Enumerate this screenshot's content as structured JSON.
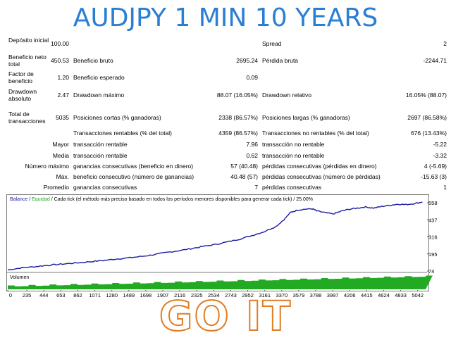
{
  "title": "AUDJPY 1 MIN 10 YEARS",
  "footer_text": "GO IT",
  "colors": {
    "title": "#2a7fd4",
    "balance": "#1a1aa0",
    "volume": "#22aa22",
    "footer": "#e07d24"
  },
  "report": {
    "deposito_label": "Depósito inicial",
    "deposito_value": "100.00",
    "spread_label": "Spread",
    "spread_value": "2",
    "beneficio_neto_label": "Beneficio neto total",
    "beneficio_neto_value": "450.53",
    "beneficio_bruto_label": "Beneficio bruto",
    "beneficio_bruto_value": "2695.24",
    "perdida_bruta_label": "Pérdida bruta",
    "perdida_bruta_value": "-2244.71",
    "factor_label": "Factor de beneficio",
    "factor_value": "1.20",
    "esperado_label": "Beneficio esperado",
    "esperado_value": "0.09",
    "drawdown_abs_label": "Drawdown absoluto",
    "drawdown_abs_value": "2.47",
    "drawdown_max_label": "Drawdown máximo",
    "drawdown_max_value": "88.07 (16.05%)",
    "drawdown_rel_label": "Drawdown relativo",
    "drawdown_rel_value": "16.05% (88.07)",
    "total_tx_label": "Total de transacciones",
    "total_tx_value": "5035",
    "cortas_label": "Posiciones cortas (% ganadoras)",
    "cortas_value": "2338 (86.57%)",
    "largas_label": "Posiciones largas (% ganadoras)",
    "largas_value": "2697 (86.58%)",
    "rentables_label": "Transacciones rentables (% del total)",
    "rentables_value": "4359 (86.57%)",
    "no_rentables_label": "Transacciones no rentables (% del total)",
    "no_rentables_value": "676 (13.43%)",
    "mayor_prefix": "Mayor",
    "mayor_rentable_label": "transacción rentable",
    "mayor_rentable_value": "7.96",
    "mayor_no_rentable_label": "transacción no rentable",
    "mayor_no_rentable_value": "-5.22",
    "media_prefix": "Media",
    "media_rentable_label": "transacción rentable",
    "media_rentable_value": "0.62",
    "media_no_rentable_label": "transacción no rentable",
    "media_no_rentable_value": "-3.32",
    "num_max_prefix": "Número máximo",
    "gan_consec_label": "ganancias consecutivas (beneficio en dinero)",
    "gan_consec_value": "57 (40.48)",
    "per_consec_label": "pérdidas consecutivas (pérdidas en dinero)",
    "per_consec_value": "4 (-5.69)",
    "max_prefix": "Máx.",
    "ben_consec_label": "beneficio consecutivo (número de ganancias)",
    "ben_consec_value": "40.48 (57)",
    "perd_consec_num_label": "pérdidas consecutivas (número de pérdidas)",
    "perd_consec_num_value": "-15.63 (3)",
    "promedio_prefix": "Promedio",
    "prom_gan_label": "ganancias consecutivas",
    "prom_gan_value": "7",
    "prom_per_label": "pérdidas consecutivas",
    "prom_per_value": "1"
  },
  "chart_data": {
    "type": "line",
    "legend_balance": "Balance",
    "legend_sep1": " / ",
    "legend_equity": "Equidad",
    "legend_rest": " / Cada tick (el método más preciso basado en todos los períodos menores disponibles para generar cada tick) / 25.00%",
    "volume_label": "Volumen",
    "y_ticks": [
      "558",
      "437",
      "316",
      "195",
      "74"
    ],
    "x_ticks": [
      "0",
      "235",
      "444",
      "653",
      "862",
      "1071",
      "1280",
      "1489",
      "1698",
      "1907",
      "2116",
      "2325",
      "2534",
      "2743",
      "2952",
      "3161",
      "3370",
      "3579",
      "3788",
      "3997",
      "4206",
      "4415",
      "4624",
      "4833",
      "5042"
    ],
    "ylim": [
      74,
      558
    ],
    "xlim": [
      0,
      5140
    ],
    "balance": [
      [
        0,
        82
      ],
      [
        150,
        95
      ],
      [
        300,
        103
      ],
      [
        450,
        112
      ],
      [
        600,
        120
      ],
      [
        750,
        127
      ],
      [
        900,
        134
      ],
      [
        1050,
        142
      ],
      [
        1200,
        150
      ],
      [
        1350,
        160
      ],
      [
        1500,
        168
      ],
      [
        1650,
        178
      ],
      [
        1800,
        190
      ],
      [
        1950,
        205
      ],
      [
        2100,
        218
      ],
      [
        2250,
        232
      ],
      [
        2400,
        248
      ],
      [
        2550,
        262
      ],
      [
        2700,
        280
      ],
      [
        2850,
        300
      ],
      [
        3000,
        325
      ],
      [
        3150,
        352
      ],
      [
        3300,
        390
      ],
      [
        3400,
        440
      ],
      [
        3480,
        490
      ],
      [
        3560,
        505
      ],
      [
        3650,
        512
      ],
      [
        3750,
        515
      ],
      [
        3800,
        500
      ],
      [
        3900,
        488
      ],
      [
        4000,
        478
      ],
      [
        4100,
        498
      ],
      [
        4200,
        512
      ],
      [
        4300,
        520
      ],
      [
        4400,
        528
      ],
      [
        4500,
        520
      ],
      [
        4600,
        532
      ],
      [
        4700,
        540
      ],
      [
        4800,
        548
      ],
      [
        4900,
        545
      ],
      [
        5000,
        552
      ],
      [
        5100,
        563
      ]
    ]
  }
}
